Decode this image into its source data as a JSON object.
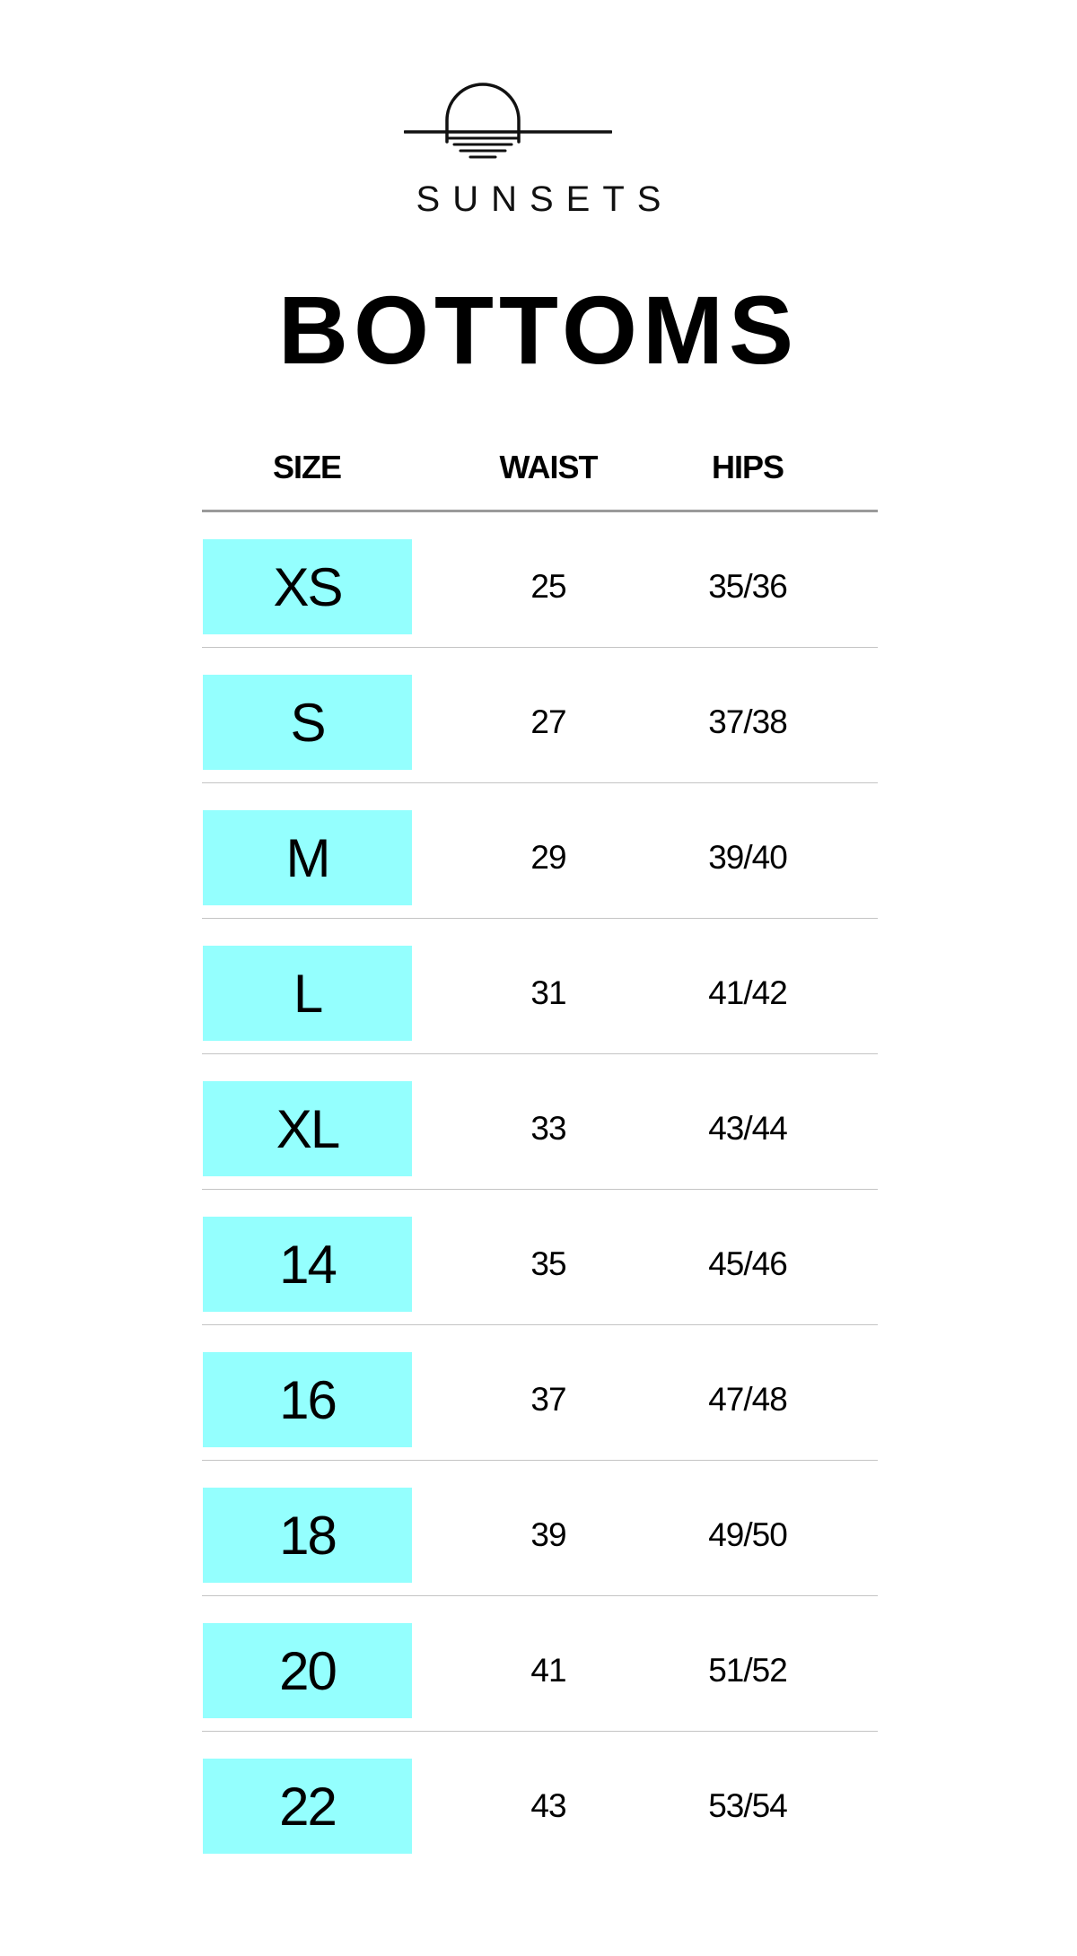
{
  "brand": {
    "name": "SUNSETS",
    "logo_icon": "sunset-logo-icon"
  },
  "title": "BOTTOMS",
  "colors": {
    "size_highlight": "#94fffe",
    "header_rule": "#9a9a9a",
    "row_rule": "#c4c4c4"
  },
  "table": {
    "headers": {
      "size": "SIZE",
      "waist": "WAIST",
      "hips": "HIPS"
    },
    "rows": [
      {
        "size": "XS",
        "waist": "25",
        "hips": "35/36"
      },
      {
        "size": "S",
        "waist": "27",
        "hips": "37/38"
      },
      {
        "size": "M",
        "waist": "29",
        "hips": "39/40"
      },
      {
        "size": "L",
        "waist": "31",
        "hips": "41/42"
      },
      {
        "size": "XL",
        "waist": "33",
        "hips": "43/44"
      },
      {
        "size": "14",
        "waist": "35",
        "hips": "45/46"
      },
      {
        "size": "16",
        "waist": "37",
        "hips": "47/48"
      },
      {
        "size": "18",
        "waist": "39",
        "hips": "49/50"
      },
      {
        "size": "20",
        "waist": "41",
        "hips": "51/52"
      },
      {
        "size": "22",
        "waist": "43",
        "hips": "53/54"
      }
    ]
  }
}
